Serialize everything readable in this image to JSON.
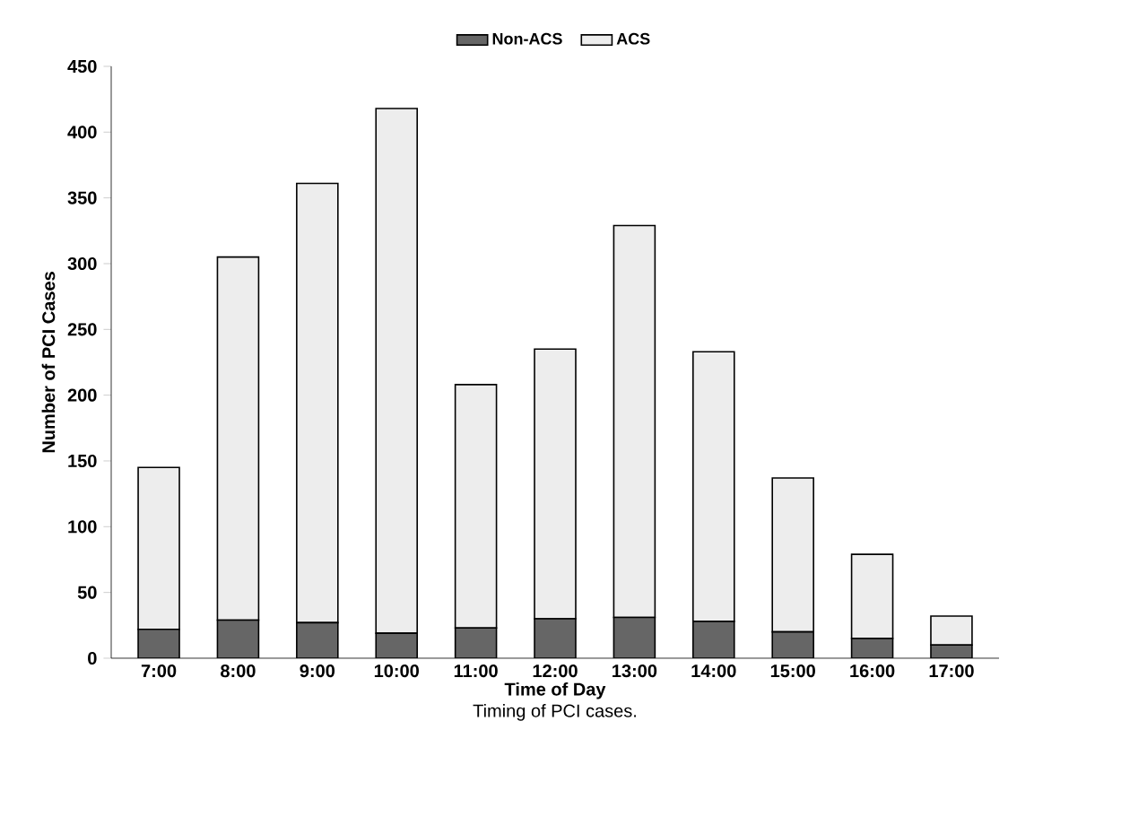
{
  "chart_data": {
    "type": "bar",
    "stacked": true,
    "xlabel": "Time of Day",
    "ylabel": "Number of PCI Cases",
    "categories": [
      "7:00",
      "8:00",
      "9:00",
      "10:00",
      "11:00",
      "12:00",
      "13:00",
      "14:00",
      "15:00",
      "16:00",
      "17:00"
    ],
    "series": [
      {
        "name": "Non-ACS",
        "color": "#666666",
        "values": [
          22,
          29,
          27,
          19,
          23,
          30,
          31,
          28,
          20,
          15,
          10
        ]
      },
      {
        "name": "ACS",
        "color": "#ededed",
        "values": [
          123,
          276,
          334,
          399,
          185,
          205,
          298,
          205,
          117,
          64,
          22
        ]
      }
    ],
    "ylim": [
      0,
      450
    ],
    "yticks": [
      0,
      50,
      100,
      150,
      200,
      250,
      300,
      350,
      400,
      450
    ],
    "legend": "top",
    "grid": false,
    "annotations": [
      "Timing of PCI cases."
    ]
  }
}
